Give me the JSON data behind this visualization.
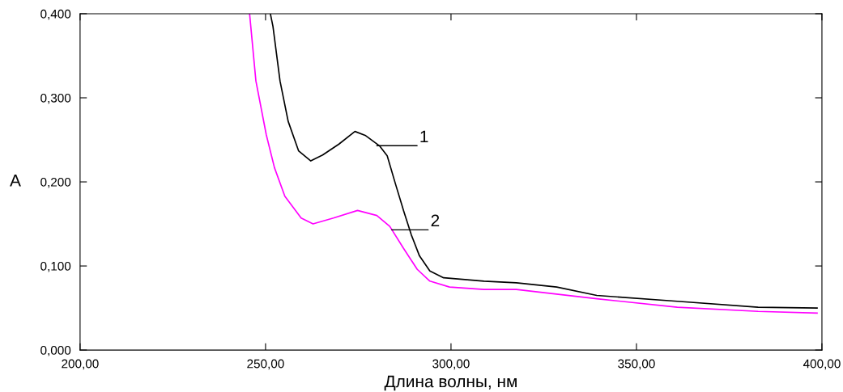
{
  "chart_data": {
    "type": "line",
    "xlabel": "Длина волны, нм",
    "ylabel": "A",
    "xlim": [
      200,
      400
    ],
    "ylim": [
      0,
      0.4
    ],
    "xticks": [
      {
        "value": 200,
        "label": "200,00"
      },
      {
        "value": 250,
        "label": "250,00"
      },
      {
        "value": 300,
        "label": "300,00"
      },
      {
        "value": 350,
        "label": "350,00"
      },
      {
        "value": 400,
        "label": "400,00"
      }
    ],
    "yticks": [
      {
        "value": 0,
        "label": "0,000"
      },
      {
        "value": 0.1,
        "label": "0,100"
      },
      {
        "value": 0.2,
        "label": "0,200"
      },
      {
        "value": 0.3,
        "label": "0,300"
      },
      {
        "value": 0.4,
        "label": "0,400"
      }
    ],
    "grid": false,
    "legend": false,
    "marker": "none",
    "line_style": "solid",
    "series": [
      {
        "color": "#000000",
        "x": [
          251.3,
          252,
          253.9,
          256.1,
          258.9,
          262.2,
          265.4,
          269.8,
          274.1,
          277,
          280.7,
          282.8,
          285,
          287.2,
          289.3,
          291.5,
          294.3,
          298,
          308.9,
          317.6,
          328.5,
          339.3,
          361,
          382.8,
          398.7
        ],
        "values": [
          0.4,
          0.385,
          0.32,
          0.272,
          0.237,
          0.225,
          0.232,
          0.245,
          0.26,
          0.255,
          0.243,
          0.231,
          0.198,
          0.166,
          0.137,
          0.112,
          0.094,
          0.086,
          0.082,
          0.08,
          0.075,
          0.065,
          0.058,
          0.051,
          0.05
        ]
      },
      {
        "color": "#ff00ff",
        "x": [
          245.7,
          247.4,
          250.2,
          252.4,
          255.2,
          259.6,
          262.8,
          268.3,
          274.8,
          280,
          283.5,
          287.2,
          290.9,
          294.3,
          299.6,
          308.9,
          317.6,
          339.3,
          361,
          382.8,
          398.7
        ],
        "values": [
          0.4,
          0.32,
          0.256,
          0.217,
          0.183,
          0.157,
          0.15,
          0.157,
          0.166,
          0.16,
          0.147,
          0.121,
          0.096,
          0.082,
          0.075,
          0.072,
          0.072,
          0.061,
          0.051,
          0.046,
          0.044
        ]
      }
    ],
    "annotations": [
      {
        "text": "1",
        "x": 280,
        "y": 0.243
      },
      {
        "text": "2",
        "x": 284,
        "y": 0.143
      }
    ]
  }
}
